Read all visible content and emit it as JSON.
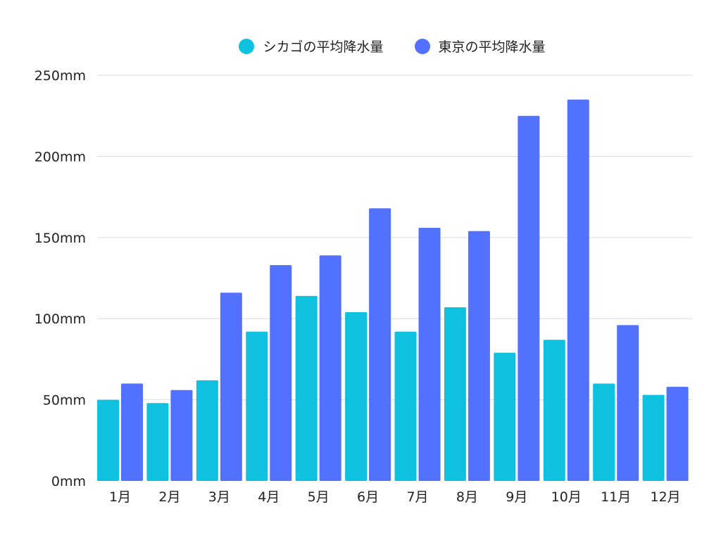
{
  "chart_data": {
    "type": "bar",
    "categories": [
      "1月",
      "2月",
      "3月",
      "4月",
      "5月",
      "6月",
      "7月",
      "8月",
      "9月",
      "10月",
      "11月",
      "12月"
    ],
    "series": [
      {
        "name": "シカゴの平均降水量",
        "color": "#0ec2df",
        "values": [
          50,
          48,
          62,
          92,
          114,
          104,
          92,
          107,
          79,
          87,
          60,
          53
        ]
      },
      {
        "name": "東京の平均降水量",
        "color": "#5271ff",
        "values": [
          60,
          56,
          116,
          133,
          139,
          168,
          156,
          154,
          225,
          235,
          96,
          58
        ]
      }
    ],
    "yticks": [
      "0mm",
      "50mm",
      "100mm",
      "150mm",
      "200mm",
      "250mm"
    ],
    "ylim": [
      0,
      250
    ],
    "grid": true,
    "legend_position": "top"
  }
}
